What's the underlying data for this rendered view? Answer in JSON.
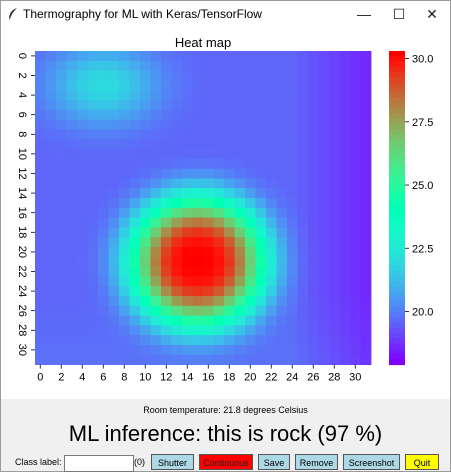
{
  "window": {
    "title": "Thermography for ML with Keras/TensorFlow",
    "minimize_glyph": "—",
    "maximize_glyph": "☐",
    "close_glyph": "✕",
    "app_icon": "feather-icon"
  },
  "chart_data": {
    "type": "heatmap",
    "title": "Heat map",
    "xlabel": "",
    "ylabel": "",
    "x_tick_labels": [
      "0",
      "2",
      "4",
      "6",
      "8",
      "10",
      "12",
      "14",
      "16",
      "18",
      "20",
      "22",
      "24",
      "26",
      "28",
      "30"
    ],
    "y_tick_labels": [
      "0",
      "2",
      "4",
      "6",
      "8",
      "10",
      "12",
      "14",
      "16",
      "18",
      "20",
      "22",
      "24",
      "26",
      "28",
      "30"
    ],
    "colorbar_ticks": [
      "20.0",
      "22.5",
      "25.0",
      "27.5",
      "30.0"
    ],
    "colorbar_range": [
      17.9,
      30.3
    ],
    "colormap": "rainbow",
    "grid_size": 32,
    "hot_spot": {
      "center_row": 21,
      "center_col": 15,
      "peak_temperature": 30.3
    },
    "warm_blob": {
      "center_row": 3,
      "center_col": 6,
      "temperature": 21.5
    },
    "base_temperature": 19.5
  },
  "status": {
    "room_temperature": "Room temperature: 21.8 degrees Celsius",
    "inference": "ML inference: this is rock (97 %)"
  },
  "controls": {
    "class_label": "Class label:",
    "class_input_value": "",
    "count": "(0)",
    "shutter": "Shutter",
    "continuous": "Continuous",
    "save": "Save",
    "remove": "Remove",
    "screenshot": "Screenshot",
    "quit": "Quit"
  }
}
